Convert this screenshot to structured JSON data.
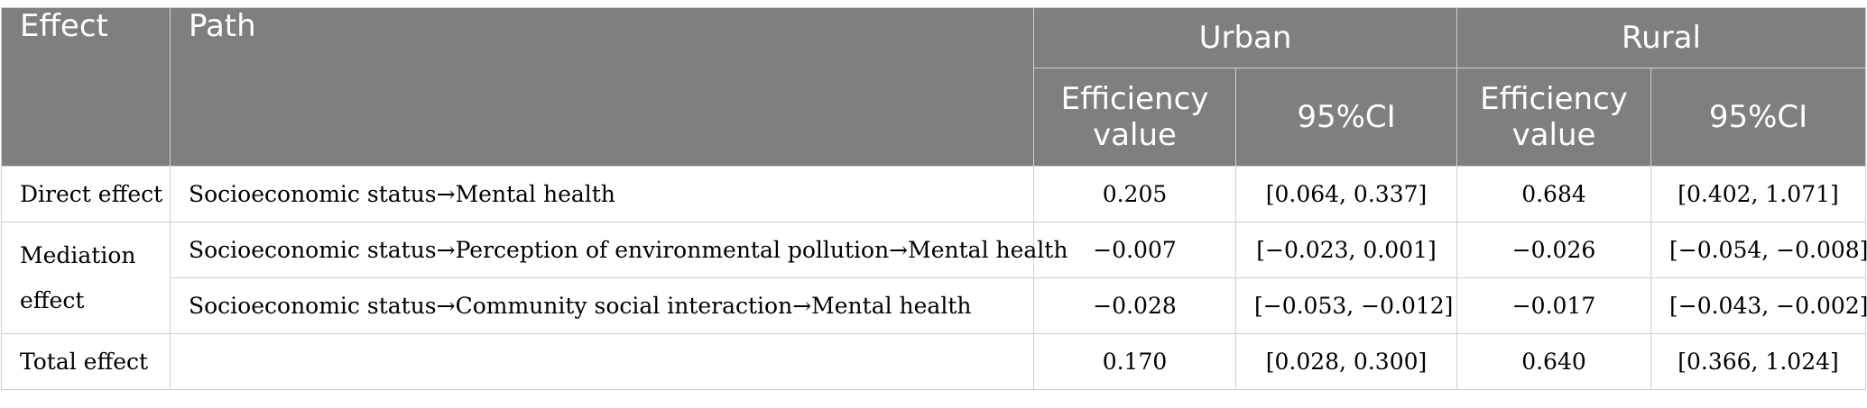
{
  "table": {
    "headers": {
      "effect": "Effect",
      "path": "Path",
      "urban": "Urban",
      "rural": "Rural",
      "efficiency_value": "Efficiency value",
      "ci": "95%CI"
    },
    "rows": [
      {
        "effect": "Direct effect",
        "path": "Socioeconomic status→Mental health",
        "urban_value": "0.205",
        "urban_ci": "[0.064, 0.337]",
        "rural_value": "0.684",
        "rural_ci": "[0.402, 1.071]"
      },
      {
        "effect": "Mediation effect",
        "path": "Socioeconomic status→Perception of environmental pollution→Mental health",
        "urban_value": "−0.007",
        "urban_ci": "[−0.023, 0.001]",
        "rural_value": "−0.026",
        "rural_ci": "[−0.054, −0.008]"
      },
      {
        "effect": "",
        "path": "Socioeconomic status→Community social interaction→Mental health",
        "urban_value": "−0.028",
        "urban_ci": "[−0.053, −0.012]",
        "rural_value": "−0.017",
        "rural_ci": "[−0.043, −0.002]"
      },
      {
        "effect": "Total effect",
        "path": "",
        "urban_value": "0.170",
        "urban_ci": "[0.028, 0.300]",
        "rural_value": "0.640",
        "rural_ci": "[0.366, 1.024]"
      }
    ]
  }
}
